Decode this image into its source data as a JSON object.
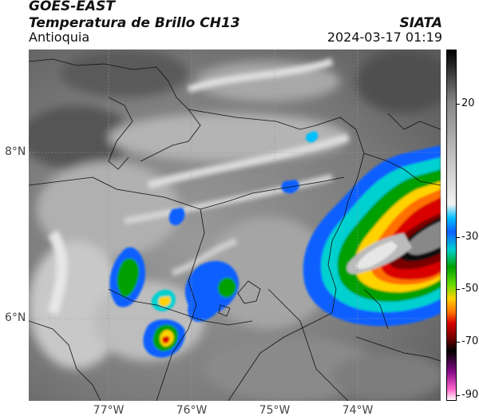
{
  "header": {
    "satellite": "GOES-EAST",
    "product": "Temperatura de Brillo CH13",
    "region": "Antioquia",
    "organization": "SIATA",
    "datetime": "2024-03-17 01:19"
  },
  "map": {
    "lat_labels": [
      "8°N",
      "6°N"
    ],
    "lon_labels": [
      "77°W",
      "76°W",
      "75°W",
      "74°W"
    ],
    "gridlines": true,
    "background_colors": {
      "cold_gray": "#e8e8e8",
      "warm_gray": "#5a5a5a"
    }
  },
  "colorbar": {
    "ticks": [
      "20",
      "-30",
      "-50",
      "-70",
      "-90"
    ],
    "colors": [
      "#ffffff",
      "#ff66cc",
      "#8a0a8a",
      "#000000",
      "#7a0000",
      "#d90000",
      "#ff7000",
      "#ffd200",
      "#66dd00",
      "#00a000",
      "#00d0d0",
      "#1060ff",
      "#00c0ff",
      "#f2f2f2",
      "#888888",
      "#000000"
    ]
  }
}
